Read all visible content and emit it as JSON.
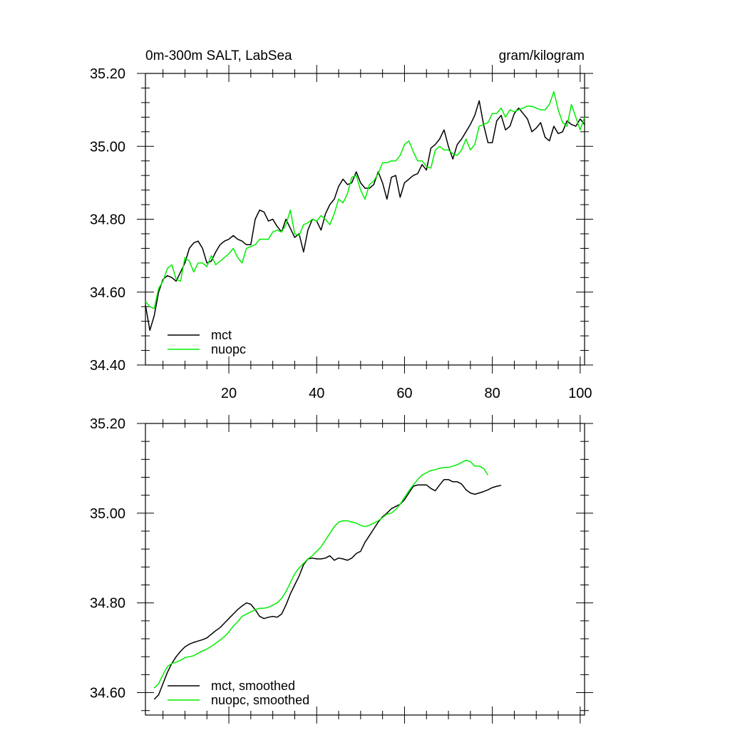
{
  "chart_data": [
    {
      "type": "line",
      "title_left": "0m-300m SALT, LabSea",
      "title_right": "gram/kilogram",
      "xlabel": "",
      "ylabel": "",
      "xlim": [
        1,
        101
      ],
      "ylim": [
        34.4,
        35.2
      ],
      "x_ticks": [
        20,
        40,
        60,
        80,
        100
      ],
      "y_ticks": [
        34.4,
        34.6,
        34.8,
        35.0,
        35.2
      ],
      "y_tick_labels": [
        "34.40",
        "34.60",
        "34.80",
        "35.00",
        "35.20"
      ],
      "legend_position": "bottom-left",
      "x_start": 1,
      "series": [
        {
          "name": "mct",
          "color": "#000000",
          "values": [
            34.565,
            34.495,
            34.535,
            34.6,
            34.635,
            34.645,
            34.64,
            34.63,
            34.655,
            34.68,
            34.72,
            34.735,
            34.74,
            34.72,
            34.68,
            34.685,
            34.71,
            34.73,
            34.74,
            34.745,
            34.755,
            34.745,
            34.74,
            34.73,
            34.73,
            34.8,
            34.825,
            34.82,
            34.795,
            34.8,
            34.78,
            34.765,
            34.8,
            34.775,
            34.75,
            34.76,
            34.71,
            34.77,
            34.8,
            34.795,
            34.77,
            34.815,
            34.84,
            34.855,
            34.89,
            34.91,
            34.895,
            34.9,
            34.93,
            34.9,
            34.885,
            34.885,
            34.895,
            34.93,
            34.9,
            34.855,
            34.915,
            34.92,
            34.86,
            34.9,
            34.91,
            34.92,
            34.925,
            34.95,
            34.935,
            34.995,
            35.005,
            35.02,
            35.045,
            35.0,
            34.965,
            35.005,
            35.02,
            35.04,
            35.06,
            35.085,
            35.125,
            35.06,
            35.01,
            35.01,
            35.07,
            35.085,
            35.045,
            35.055,
            35.09,
            35.105,
            35.09,
            35.075,
            35.04,
            35.05,
            35.065,
            35.025,
            35.015,
            35.055,
            35.035,
            35.04,
            35.07,
            35.06,
            35.055,
            35.075,
            35.06
          ]
        },
        {
          "name": "nuopc",
          "color": "#00ee00",
          "values": [
            34.575,
            34.56,
            34.555,
            34.61,
            34.63,
            34.665,
            34.675,
            34.635,
            34.63,
            34.695,
            34.685,
            34.655,
            34.68,
            34.68,
            34.67,
            34.7,
            34.675,
            34.685,
            34.695,
            34.705,
            34.72,
            34.695,
            34.68,
            34.72,
            34.725,
            34.73,
            34.745,
            34.745,
            34.745,
            34.765,
            34.77,
            34.765,
            34.785,
            34.825,
            34.76,
            34.755,
            34.785,
            34.79,
            34.8,
            34.795,
            34.81,
            34.8,
            34.785,
            34.815,
            34.855,
            34.845,
            34.87,
            34.915,
            34.92,
            34.88,
            34.855,
            34.895,
            34.905,
            34.925,
            34.955,
            34.955,
            34.96,
            34.96,
            34.975,
            35.005,
            35.015,
            34.985,
            34.96,
            34.96,
            34.945,
            34.94,
            34.99,
            35.0,
            34.99,
            34.99,
            34.98,
            34.975,
            34.99,
            35.02,
            34.99,
            35.005,
            35.055,
            35.06,
            35.065,
            35.09,
            35.09,
            35.105,
            35.08,
            35.1,
            35.095,
            35.1,
            35.105,
            35.11,
            35.11,
            35.105,
            35.1,
            35.1,
            35.115,
            35.15,
            35.1,
            35.065,
            35.055,
            35.115,
            35.08,
            35.045,
            35.08
          ]
        }
      ]
    },
    {
      "type": "line",
      "xlabel": "",
      "ylabel": "",
      "xlim": [
        1,
        101
      ],
      "ylim": [
        34.55,
        35.2
      ],
      "x_ticks": [
        20,
        40,
        60,
        80,
        100
      ],
      "y_ticks": [
        34.6,
        34.8,
        35.0,
        35.2
      ],
      "y_tick_labels": [
        "34.60",
        "34.80",
        "35.00",
        "35.20"
      ],
      "legend_position": "bottom-left",
      "x_start": 3,
      "series": [
        {
          "name": "mct, smoothed",
          "color": "#000000",
          "values": [
            34.585,
            34.595,
            34.62,
            34.645,
            34.665,
            34.68,
            34.692,
            34.702,
            34.708,
            34.712,
            34.715,
            34.718,
            34.722,
            34.73,
            34.738,
            34.745,
            34.755,
            34.765,
            34.775,
            34.785,
            34.793,
            34.8,
            34.797,
            34.785,
            34.77,
            34.765,
            34.768,
            34.77,
            34.768,
            34.775,
            34.795,
            34.82,
            34.84,
            34.86,
            34.885,
            34.898,
            34.9,
            34.898,
            34.898,
            34.9,
            34.905,
            34.895,
            34.9,
            34.898,
            34.895,
            34.9,
            34.91,
            34.915,
            34.935,
            34.95,
            34.965,
            34.98,
            34.992,
            35.0,
            35.01,
            35.015,
            35.02,
            35.03,
            35.045,
            35.06,
            35.063,
            35.063,
            35.063,
            35.055,
            35.05,
            35.063,
            35.075,
            35.075,
            35.07,
            35.07,
            35.065,
            35.052,
            35.045,
            35.042,
            35.045,
            35.048,
            35.052,
            35.057,
            35.06,
            35.062
          ]
        },
        {
          "name": "nuopc, smoothed",
          "color": "#00ee00",
          "values": [
            34.61,
            34.62,
            34.64,
            34.658,
            34.665,
            34.668,
            34.672,
            34.678,
            34.68,
            34.682,
            34.688,
            34.693,
            34.697,
            34.703,
            34.71,
            34.717,
            34.725,
            34.735,
            34.748,
            34.758,
            34.77,
            34.775,
            34.78,
            34.785,
            34.788,
            34.788,
            34.79,
            34.795,
            34.8,
            34.81,
            34.825,
            34.845,
            34.865,
            34.878,
            34.888,
            34.898,
            34.905,
            34.915,
            34.925,
            34.94,
            34.955,
            34.97,
            34.98,
            34.983,
            34.983,
            34.98,
            34.978,
            34.973,
            34.97,
            34.973,
            34.978,
            34.983,
            34.99,
            34.998,
            35.0,
            35.008,
            35.02,
            35.035,
            35.05,
            35.063,
            35.075,
            35.085,
            35.09,
            35.095,
            35.097,
            35.1,
            35.102,
            35.102,
            35.105,
            35.108,
            35.113,
            35.118,
            35.115,
            35.105,
            35.105,
            35.1,
            35.085
          ]
        }
      ]
    }
  ]
}
